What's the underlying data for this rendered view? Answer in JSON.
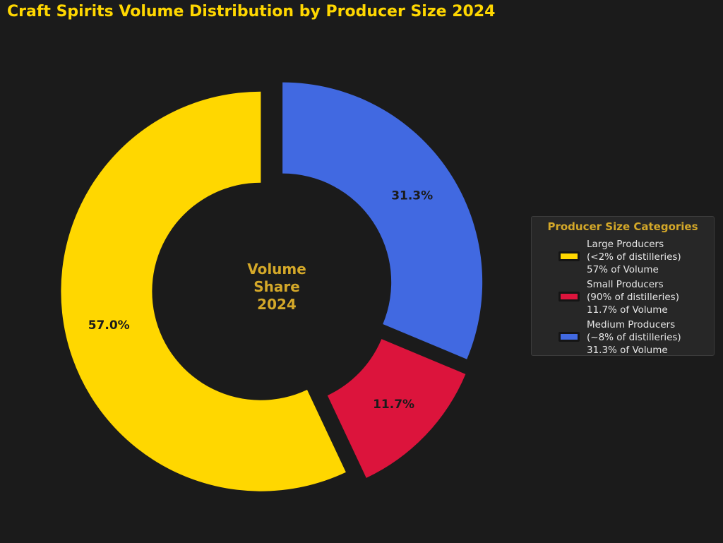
{
  "chart_data": {
    "type": "pie",
    "style": "donut",
    "title": "Craft Spirits Volume Distribution by Producer Size 2024",
    "center_label": [
      "Volume",
      "Share",
      "2024"
    ],
    "slices": [
      {
        "label": "Large Producers",
        "value": 57.0,
        "value_label": "57.0%",
        "color": "#ffd700"
      },
      {
        "label": "Small Producers",
        "value": 11.7,
        "value_label": "11.7%",
        "color": "#dc143c"
      },
      {
        "label": "Medium Producers",
        "value": 31.3,
        "value_label": "31.3%",
        "color": "#4169e1"
      }
    ],
    "legend": {
      "title": "Producer Size Categories",
      "placement": "right",
      "entries": [
        {
          "lines": [
            "Large Producers",
            "(<2% of distilleries)",
            "57% of Volume"
          ],
          "color": "#ffd700"
        },
        {
          "lines": [
            "Small Producers",
            "(90% of distilleries)",
            "11.7% of Volume"
          ],
          "color": "#dc143c"
        },
        {
          "lines": [
            "Medium Producers",
            "(~8% of distilleries)",
            "31.3% of Volume"
          ],
          "color": "#4169e1"
        }
      ]
    }
  },
  "colors": {
    "background": "#1b1b1b",
    "title": "#ffd700",
    "center_text": "#d4a829",
    "legend_title": "#d4a829",
    "value_label": "#1b1b1b"
  }
}
